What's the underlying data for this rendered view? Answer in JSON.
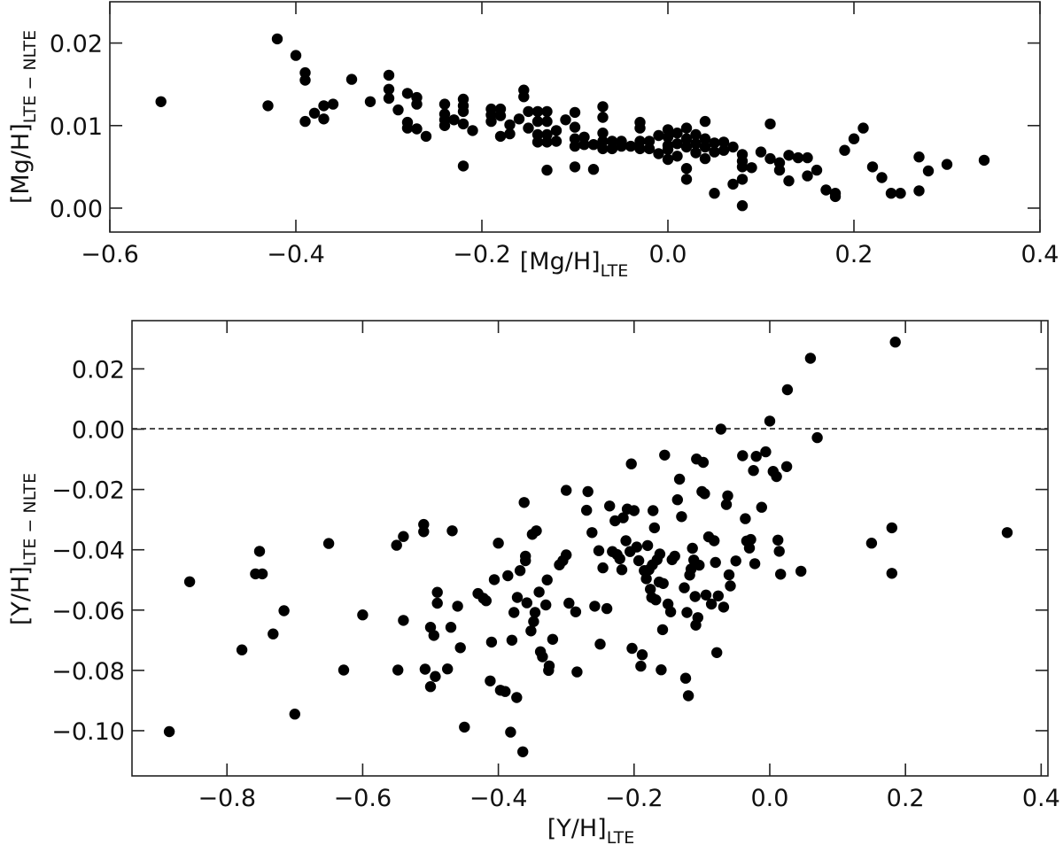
{
  "chart_data": [
    {
      "type": "scatter",
      "panel": "top",
      "xlabel": "[Mg/H]",
      "xlabel_sub": "LTE",
      "ylabel": "[Mg/H]",
      "ylabel_sub": "LTE − NLTE",
      "xlim": [
        -0.6,
        0.4
      ],
      "ylim": [
        -0.0029,
        0.025
      ],
      "xticks": [
        -0.6,
        -0.4,
        -0.2,
        0.0,
        0.2,
        0.4
      ],
      "xtick_labels": [
        "−0.6",
        "−0.4",
        "−0.2",
        "0.0",
        "0.2",
        "0.4"
      ],
      "yticks": [
        0.0,
        0.01,
        0.02
      ],
      "ytick_labels": [
        "0.00",
        "0.01",
        "0.02"
      ],
      "grid": false,
      "marker_color": "#000000",
      "points": [
        [
          -0.545,
          0.0129
        ],
        [
          -0.43,
          0.0124
        ],
        [
          -0.42,
          0.0205
        ],
        [
          -0.4,
          0.0185
        ],
        [
          -0.39,
          0.0164
        ],
        [
          -0.39,
          0.0155
        ],
        [
          -0.39,
          0.0105
        ],
        [
          -0.38,
          0.0115
        ],
        [
          -0.37,
          0.0124
        ],
        [
          -0.37,
          0.0108
        ],
        [
          -0.36,
          0.0126
        ],
        [
          -0.34,
          0.0156
        ],
        [
          -0.32,
          0.0129
        ],
        [
          -0.3,
          0.0161
        ],
        [
          -0.3,
          0.0144
        ],
        [
          -0.3,
          0.0133
        ],
        [
          -0.29,
          0.0119
        ],
        [
          -0.28,
          0.0139
        ],
        [
          -0.28,
          0.0104
        ],
        [
          -0.28,
          0.0097
        ],
        [
          -0.27,
          0.0134
        ],
        [
          -0.27,
          0.0126
        ],
        [
          -0.27,
          0.0096
        ],
        [
          -0.26,
          0.0087
        ],
        [
          -0.24,
          0.0126
        ],
        [
          -0.24,
          0.0114
        ],
        [
          -0.24,
          0.0107
        ],
        [
          -0.24,
          0.01
        ],
        [
          -0.23,
          0.0107
        ],
        [
          -0.22,
          0.0132
        ],
        [
          -0.22,
          0.0124
        ],
        [
          -0.22,
          0.0117
        ],
        [
          -0.22,
          0.0102
        ],
        [
          -0.22,
          0.0051
        ],
        [
          -0.21,
          0.0094
        ],
        [
          -0.19,
          0.012
        ],
        [
          -0.19,
          0.0113
        ],
        [
          -0.19,
          0.0105
        ],
        [
          -0.18,
          0.012
        ],
        [
          -0.18,
          0.0112
        ],
        [
          -0.18,
          0.0087
        ],
        [
          -0.17,
          0.009
        ],
        [
          -0.17,
          0.0101
        ],
        [
          -0.16,
          0.0108
        ],
        [
          -0.155,
          0.0143
        ],
        [
          -0.155,
          0.0135
        ],
        [
          -0.15,
          0.0117
        ],
        [
          -0.15,
          0.0097
        ],
        [
          -0.14,
          0.0117
        ],
        [
          -0.14,
          0.0105
        ],
        [
          -0.14,
          0.0089
        ],
        [
          -0.14,
          0.008
        ],
        [
          -0.13,
          0.0117
        ],
        [
          -0.13,
          0.0105
        ],
        [
          -0.13,
          0.0089
        ],
        [
          -0.13,
          0.008
        ],
        [
          -0.13,
          0.0046
        ],
        [
          -0.12,
          0.0094
        ],
        [
          -0.12,
          0.0081
        ],
        [
          -0.11,
          0.0107
        ],
        [
          -0.1,
          0.0116
        ],
        [
          -0.1,
          0.0098
        ],
        [
          -0.1,
          0.0084
        ],
        [
          -0.1,
          0.0075
        ],
        [
          -0.1,
          0.005
        ],
        [
          -0.09,
          0.0086
        ],
        [
          -0.09,
          0.0077
        ],
        [
          -0.08,
          0.0077
        ],
        [
          -0.08,
          0.0047
        ],
        [
          -0.07,
          0.0123
        ],
        [
          -0.07,
          0.011
        ],
        [
          -0.07,
          0.0091
        ],
        [
          -0.07,
          0.0081
        ],
        [
          -0.07,
          0.0072
        ],
        [
          -0.06,
          0.0081
        ],
        [
          -0.06,
          0.0072
        ],
        [
          -0.05,
          0.0081
        ],
        [
          -0.05,
          0.0075
        ],
        [
          -0.04,
          0.0075
        ],
        [
          -0.03,
          0.0104
        ],
        [
          -0.03,
          0.0097
        ],
        [
          -0.03,
          0.0081
        ],
        [
          -0.03,
          0.0072
        ],
        [
          -0.02,
          0.0081
        ],
        [
          -0.02,
          0.0072
        ],
        [
          -0.01,
          0.0088
        ],
        [
          -0.01,
          0.0066
        ],
        [
          0.0,
          0.0095
        ],
        [
          0.0,
          0.0086
        ],
        [
          0.0,
          0.0076
        ],
        [
          0.0,
          0.0071
        ],
        [
          0.0,
          0.0059
        ],
        [
          0.01,
          0.0091
        ],
        [
          0.01,
          0.0078
        ],
        [
          0.01,
          0.0063
        ],
        [
          0.02,
          0.0097
        ],
        [
          0.02,
          0.0084
        ],
        [
          0.02,
          0.0074
        ],
        [
          0.02,
          0.0048
        ],
        [
          0.02,
          0.0035
        ],
        [
          0.03,
          0.0089
        ],
        [
          0.03,
          0.0078
        ],
        [
          0.03,
          0.0067
        ],
        [
          0.04,
          0.0105
        ],
        [
          0.04,
          0.0084
        ],
        [
          0.04,
          0.0074
        ],
        [
          0.04,
          0.006
        ],
        [
          0.05,
          0.0079
        ],
        [
          0.05,
          0.0068
        ],
        [
          0.05,
          0.0018
        ],
        [
          0.06,
          0.008
        ],
        [
          0.06,
          0.007
        ],
        [
          0.07,
          0.0074
        ],
        [
          0.07,
          0.0029
        ],
        [
          0.08,
          0.0065
        ],
        [
          0.08,
          0.0057
        ],
        [
          0.08,
          0.005
        ],
        [
          0.08,
          0.0035
        ],
        [
          0.08,
          0.0003
        ],
        [
          0.09,
          0.0049
        ],
        [
          0.1,
          0.0068
        ],
        [
          0.11,
          0.0102
        ],
        [
          0.11,
          0.006
        ],
        [
          0.12,
          0.0055
        ],
        [
          0.12,
          0.0046
        ],
        [
          0.13,
          0.0064
        ],
        [
          0.13,
          0.0033
        ],
        [
          0.14,
          0.0061
        ],
        [
          0.15,
          0.0061
        ],
        [
          0.15,
          0.0039
        ],
        [
          0.16,
          0.0046
        ],
        [
          0.17,
          0.0022
        ],
        [
          0.18,
          0.0018
        ],
        [
          0.18,
          0.0014
        ],
        [
          0.19,
          0.007
        ],
        [
          0.2,
          0.0084
        ],
        [
          0.21,
          0.0097
        ],
        [
          0.22,
          0.005
        ],
        [
          0.23,
          0.0037
        ],
        [
          0.24,
          0.0018
        ],
        [
          0.25,
          0.0018
        ],
        [
          0.27,
          0.0062
        ],
        [
          0.27,
          0.0021
        ],
        [
          0.28,
          0.0045
        ],
        [
          0.3,
          0.0053
        ],
        [
          0.34,
          0.0058
        ]
      ]
    },
    {
      "type": "scatter",
      "panel": "bottom",
      "xlabel": "[Y/H]",
      "xlabel_sub": "LTE",
      "ylabel": "[Y/H]",
      "ylabel_sub": "LTE − NLTE",
      "xlim": [
        -0.94,
        0.41
      ],
      "ylim": [
        -0.115,
        0.036
      ],
      "xticks": [
        -0.8,
        -0.6,
        -0.4,
        -0.2,
        0.0,
        0.2,
        0.4
      ],
      "xtick_labels": [
        "−0.8",
        "−0.6",
        "−0.4",
        "−0.2",
        "0.0",
        "0.2",
        "0.4"
      ],
      "yticks": [
        0.02,
        0.0,
        -0.02,
        -0.04,
        -0.06,
        -0.08,
        -0.1
      ],
      "ytick_labels": [
        "0.02",
        "0.00",
        "−0.02",
        "−0.04",
        "−0.06",
        "−0.08",
        "−0.10"
      ],
      "hline": {
        "y": 0.0,
        "style": "dashed",
        "color": "#000000"
      },
      "grid": false,
      "marker_color": "#000000",
      "points": [
        [
          -0.885,
          -0.1003
        ],
        [
          -0.855,
          -0.0506
        ],
        [
          -0.778,
          -0.0732
        ],
        [
          -0.758,
          -0.048
        ],
        [
          -0.752,
          -0.0405
        ],
        [
          -0.748,
          -0.048
        ],
        [
          -0.732,
          -0.0679
        ],
        [
          -0.716,
          -0.0602
        ],
        [
          -0.7,
          -0.0945
        ],
        [
          -0.65,
          -0.0379
        ],
        [
          -0.628,
          -0.0799
        ],
        [
          -0.6,
          -0.0616
        ],
        [
          -0.55,
          -0.0385
        ],
        [
          -0.548,
          -0.0799
        ],
        [
          -0.54,
          -0.0634
        ],
        [
          -0.54,
          -0.0356
        ],
        [
          -0.51,
          -0.0316
        ],
        [
          -0.51,
          -0.034
        ],
        [
          -0.508,
          -0.0796
        ],
        [
          -0.5,
          -0.0854
        ],
        [
          -0.5,
          -0.0657
        ],
        [
          -0.495,
          -0.0684
        ],
        [
          -0.493,
          -0.082
        ],
        [
          -0.49,
          -0.0541
        ],
        [
          -0.49,
          -0.0577
        ],
        [
          -0.475,
          -0.0795
        ],
        [
          -0.47,
          -0.0657
        ],
        [
          -0.468,
          -0.0337
        ],
        [
          -0.46,
          -0.0587
        ],
        [
          -0.456,
          -0.0725
        ],
        [
          -0.45,
          -0.0988
        ],
        [
          -0.43,
          -0.0545
        ],
        [
          -0.422,
          -0.0561
        ],
        [
          -0.418,
          -0.0569
        ],
        [
          -0.412,
          -0.0835
        ],
        [
          -0.41,
          -0.0706
        ],
        [
          -0.406,
          -0.0499
        ],
        [
          -0.4,
          -0.0378
        ],
        [
          -0.397,
          -0.0866
        ],
        [
          -0.39,
          -0.087
        ],
        [
          -0.386,
          -0.0486
        ],
        [
          -0.382,
          -0.1005
        ],
        [
          -0.38,
          -0.07
        ],
        [
          -0.377,
          -0.0608
        ],
        [
          -0.373,
          -0.089
        ],
        [
          -0.372,
          -0.0558
        ],
        [
          -0.368,
          -0.0469
        ],
        [
          -0.364,
          -0.107
        ],
        [
          -0.362,
          -0.0243
        ],
        [
          -0.36,
          -0.0421
        ],
        [
          -0.36,
          -0.0436
        ],
        [
          -0.358,
          -0.0576
        ],
        [
          -0.352,
          -0.0669
        ],
        [
          -0.35,
          -0.0349
        ],
        [
          -0.348,
          -0.0638
        ],
        [
          -0.346,
          -0.0608
        ],
        [
          -0.344,
          -0.0337
        ],
        [
          -0.34,
          -0.054
        ],
        [
          -0.338,
          -0.0738
        ],
        [
          -0.335,
          -0.0755
        ],
        [
          -0.33,
          -0.0583
        ],
        [
          -0.328,
          -0.05
        ],
        [
          -0.326,
          -0.08
        ],
        [
          -0.325,
          -0.0785
        ],
        [
          -0.32,
          -0.0697
        ],
        [
          -0.31,
          -0.045
        ],
        [
          -0.305,
          -0.0436
        ],
        [
          -0.3,
          -0.0417
        ],
        [
          -0.3,
          -0.0203
        ],
        [
          -0.296,
          -0.0577
        ],
        [
          -0.286,
          -0.0606
        ],
        [
          -0.284,
          -0.0805
        ],
        [
          -0.27,
          -0.0269
        ],
        [
          -0.268,
          -0.0207
        ],
        [
          -0.262,
          -0.0343
        ],
        [
          -0.258,
          -0.0587
        ],
        [
          -0.252,
          -0.0403
        ],
        [
          -0.25,
          -0.0713
        ],
        [
          -0.246,
          -0.046
        ],
        [
          -0.24,
          -0.0595
        ],
        [
          -0.236,
          -0.0255
        ],
        [
          -0.232,
          -0.0406
        ],
        [
          -0.228,
          -0.0304
        ],
        [
          -0.225,
          -0.0416
        ],
        [
          -0.221,
          -0.043
        ],
        [
          -0.218,
          -0.0466
        ],
        [
          -0.216,
          -0.0294
        ],
        [
          -0.212,
          -0.037
        ],
        [
          -0.21,
          -0.0265
        ],
        [
          -0.206,
          -0.0406
        ],
        [
          -0.204,
          -0.0115
        ],
        [
          -0.203,
          -0.0727
        ],
        [
          -0.2,
          -0.027
        ],
        [
          -0.196,
          -0.0391
        ],
        [
          -0.193,
          -0.0436
        ],
        [
          -0.19,
          -0.0786
        ],
        [
          -0.188,
          -0.0748
        ],
        [
          -0.185,
          -0.0469
        ],
        [
          -0.182,
          -0.0496
        ],
        [
          -0.18,
          -0.0386
        ],
        [
          -0.178,
          -0.0466
        ],
        [
          -0.176,
          -0.0531
        ],
        [
          -0.174,
          -0.0558
        ],
        [
          -0.173,
          -0.045
        ],
        [
          -0.172,
          -0.027
        ],
        [
          -0.17,
          -0.0327
        ],
        [
          -0.168,
          -0.0566
        ],
        [
          -0.166,
          -0.0433
        ],
        [
          -0.163,
          -0.0507
        ],
        [
          -0.162,
          -0.0414
        ],
        [
          -0.16,
          -0.0798
        ],
        [
          -0.158,
          -0.0665
        ],
        [
          -0.157,
          -0.0512
        ],
        [
          -0.155,
          -0.0086
        ],
        [
          -0.15,
          -0.058
        ],
        [
          -0.146,
          -0.0606
        ],
        [
          -0.144,
          -0.0433
        ],
        [
          -0.14,
          -0.0421
        ],
        [
          -0.136,
          -0.0234
        ],
        [
          -0.133,
          -0.0166
        ],
        [
          -0.13,
          -0.029
        ],
        [
          -0.126,
          -0.0526
        ],
        [
          -0.124,
          -0.0826
        ],
        [
          -0.122,
          -0.0608
        ],
        [
          -0.12,
          -0.0884
        ],
        [
          -0.118,
          -0.0484
        ],
        [
          -0.116,
          -0.0464
        ],
        [
          -0.114,
          -0.0395
        ],
        [
          -0.112,
          -0.0434
        ],
        [
          -0.11,
          -0.0555
        ],
        [
          -0.109,
          -0.065
        ],
        [
          -0.108,
          -0.0099
        ],
        [
          -0.106,
          -0.0625
        ],
        [
          -0.104,
          -0.0451
        ],
        [
          -0.1,
          -0.0207
        ],
        [
          -0.098,
          -0.011
        ],
        [
          -0.096,
          -0.0214
        ],
        [
          -0.094,
          -0.055
        ],
        [
          -0.09,
          -0.0357
        ],
        [
          -0.086,
          -0.058
        ],
        [
          -0.082,
          -0.037
        ],
        [
          -0.08,
          -0.0442
        ],
        [
          -0.078,
          -0.0741
        ],
        [
          -0.076,
          -0.0553
        ],
        [
          -0.072,
          0.0
        ],
        [
          -0.068,
          -0.059
        ],
        [
          -0.064,
          -0.025
        ],
        [
          -0.062,
          -0.0221
        ],
        [
          -0.06,
          -0.0483
        ],
        [
          -0.058,
          -0.052
        ],
        [
          -0.05,
          -0.0437
        ],
        [
          -0.04,
          -0.0088
        ],
        [
          -0.036,
          -0.0297
        ],
        [
          -0.034,
          -0.0371
        ],
        [
          -0.03,
          -0.0394
        ],
        [
          -0.028,
          -0.0366
        ],
        [
          -0.024,
          -0.0137
        ],
        [
          -0.022,
          -0.0446
        ],
        [
          -0.02,
          -0.009
        ],
        [
          -0.012,
          -0.0259
        ],
        [
          -0.006,
          -0.0075
        ],
        [
          0.0,
          0.0027
        ],
        [
          0.005,
          -0.014
        ],
        [
          0.01,
          -0.0157
        ],
        [
          0.012,
          -0.0368
        ],
        [
          0.014,
          -0.0405
        ],
        [
          0.016,
          -0.0481
        ],
        [
          0.025,
          -0.0124
        ],
        [
          0.026,
          0.0131
        ],
        [
          0.046,
          -0.0471
        ],
        [
          0.06,
          0.0235
        ],
        [
          0.07,
          -0.0028
        ],
        [
          0.15,
          -0.0378
        ],
        [
          0.18,
          -0.0327
        ],
        [
          0.18,
          -0.0478
        ],
        [
          0.185,
          0.0289
        ],
        [
          0.35,
          -0.0343
        ]
      ]
    }
  ],
  "figure": {
    "top": {
      "x_axis_label": "[Mg/H]",
      "x_axis_label_sub": "LTE",
      "y_axis_label": "[Mg/H]",
      "y_axis_label_sub": "LTE − NLTE"
    },
    "bottom": {
      "x_axis_label": "[Y/H]",
      "x_axis_label_sub": "LTE",
      "y_axis_label": "[Y/H]",
      "y_axis_label_sub": "LTE − NLTE"
    }
  }
}
